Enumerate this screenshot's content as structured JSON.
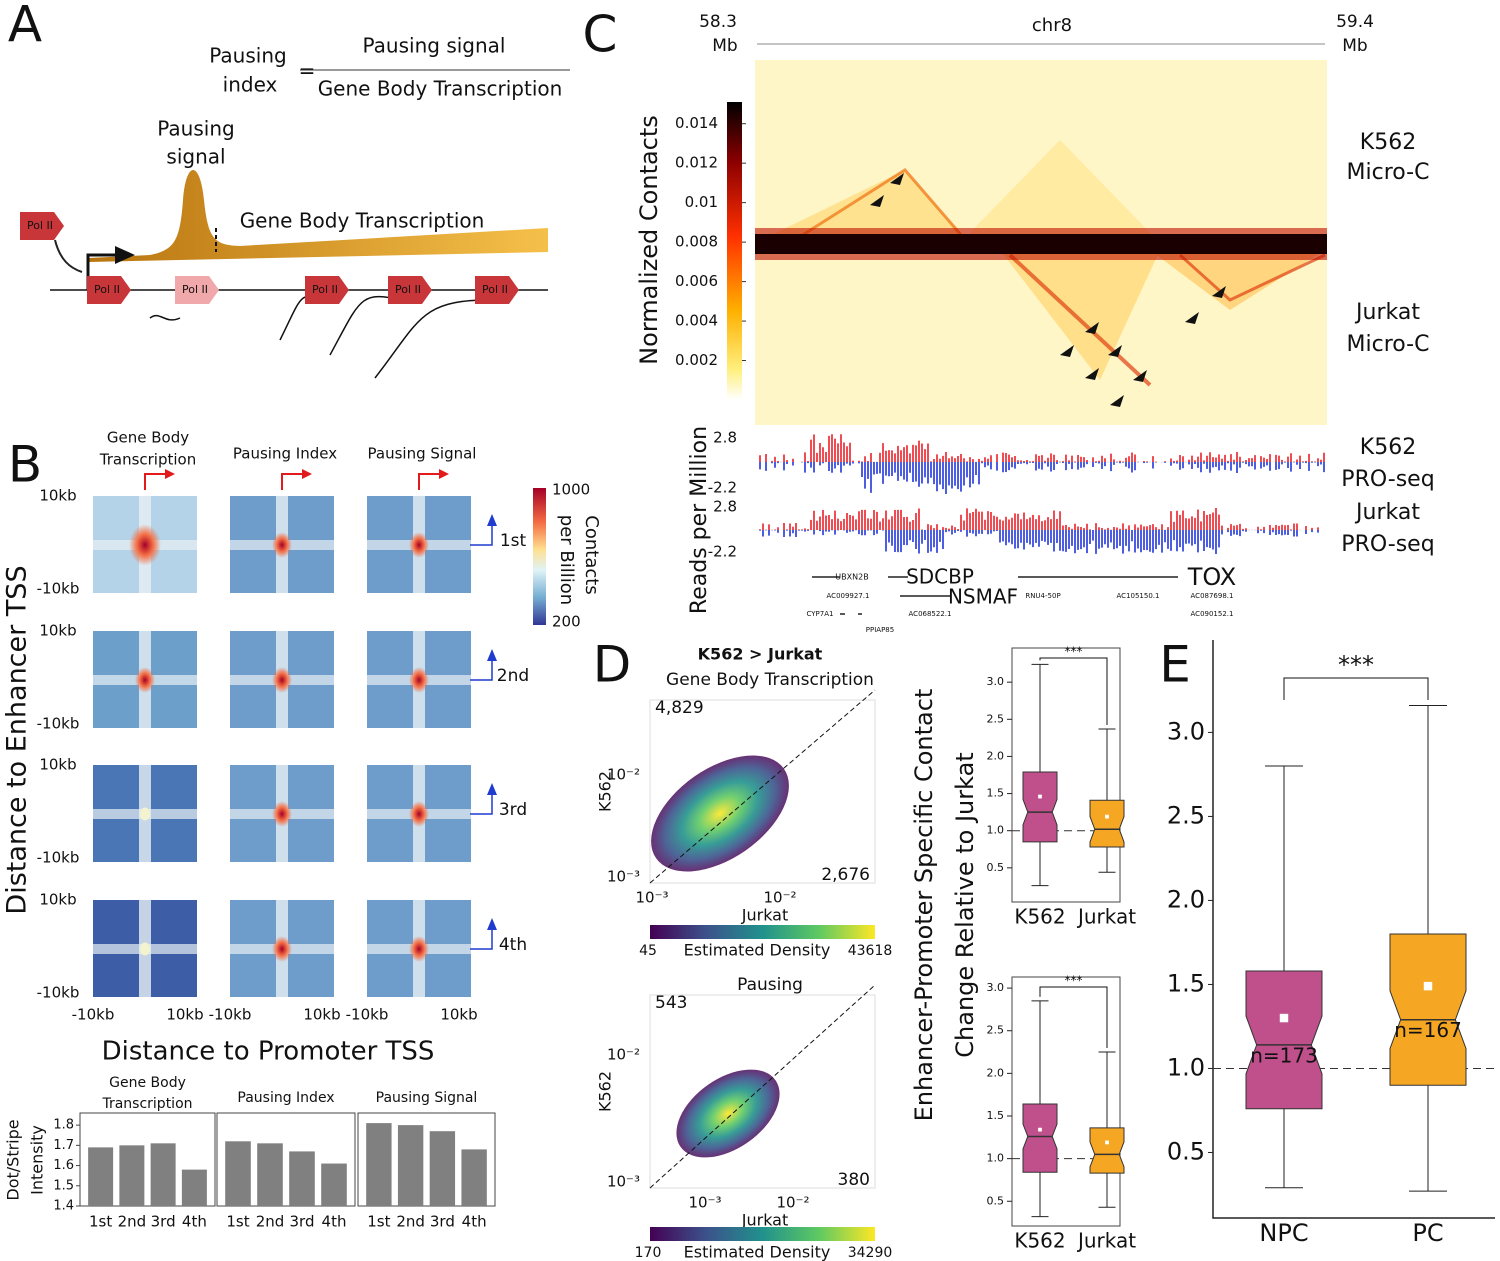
{
  "panel_labels": [
    "A",
    "B",
    "C",
    "D",
    "E"
  ],
  "panel_a": {
    "index_label": [
      "Pausing",
      "index"
    ],
    "equals": "=",
    "numerator": "Pausing signal",
    "denominator": "Gene Body Transcription",
    "peak_label": [
      "Pausing",
      "signal"
    ],
    "body_label": "Gene Body Transcription",
    "pol_label": "Pol II"
  },
  "panel_b": {
    "column_titles": [
      [
        "Gene Body",
        "Transcription"
      ],
      [
        "Pausing Index"
      ],
      [
        "Pausing Signal"
      ]
    ],
    "row_labels": [
      "1st",
      "2nd",
      "3rd",
      "4th"
    ],
    "y_tick_labels": [
      "10kb",
      "-10kb"
    ],
    "x_tick_labels": [
      "-10kb",
      "10kb"
    ],
    "y_title": "Distance to Enhancer TSS",
    "x_title": "Distance to Promoter TSS",
    "colorbar": {
      "title": [
        "Contacts",
        "per Billion"
      ],
      "ticks": [
        1000,
        200
      ]
    }
  },
  "panel_c": {
    "left_coord": [
      "58.3",
      "Mb"
    ],
    "chrom": "chr8",
    "right_coord": [
      "59.4",
      "Mb"
    ],
    "colorbar": {
      "title": "Normalized Contacts",
      "lim": [
        0,
        0.0151
      ],
      "ticks": [
        0.002,
        0.004,
        0.006,
        0.008,
        0.01,
        0.012,
        0.014
      ]
    },
    "track_labels": [
      [
        "K562",
        "Micro-C"
      ],
      [
        "Jurkat",
        "Micro-C"
      ],
      [
        "K562",
        "PRO-seq"
      ],
      [
        "Jurkat",
        "PRO-seq"
      ]
    ],
    "track_ylabel": "Reads per Million",
    "track_ticks": [
      2.8,
      -2.2
    ],
    "genes": [
      "UBXN2B",
      "SDCBP",
      "NSMAF",
      "TOX",
      "AC009927.1",
      "CYP7A1",
      "PPIAP85",
      "AC068522.1",
      "RNU4-50P",
      "AC105150.1",
      "AC087698.1",
      "AC090152.1"
    ]
  },
  "panel_d": {
    "scatters": [
      {
        "title": "K562 > Jurkat",
        "subtitle": "Gene Body Transcription",
        "count_upper": "4,829",
        "count_lower": "2,676",
        "ticks": [
          "10⁻³",
          "10⁻²"
        ],
        "xlabel": "Jurkat",
        "ylabel": "K562",
        "colorbar_min": 45,
        "colorbar_title": "Estimated Density",
        "colorbar_max": 43618
      },
      {
        "subtitle": "Pausing",
        "count_upper": "543",
        "count_lower": "380",
        "ticks": [
          "10⁻³",
          "10⁻²"
        ],
        "xlabel": "Jurkat",
        "ylabel": "K562",
        "colorbar_min": 170,
        "colorbar_title": "Estimated Density",
        "colorbar_max": 34290
      }
    ],
    "box_ylabel": [
      "Enhancer-Promoter Specific Contact",
      "Change Relative to Jurkat"
    ]
  },
  "chart_data": [
    {
      "type": "bar",
      "title": [
        "Gene Body",
        "Transcription"
      ],
      "ylabel": [
        "Dot/Stripe",
        "Intensity"
      ],
      "categories": [
        "1st",
        "2nd",
        "3rd",
        "4th"
      ],
      "values": [
        1.69,
        1.7,
        1.71,
        1.58
      ],
      "color": "#808080",
      "ylim": [
        1.4,
        1.86
      ],
      "yticks": [
        1.4,
        1.5,
        1.6,
        1.7,
        1.8
      ]
    },
    {
      "type": "bar",
      "title": [
        "Pausing Index"
      ],
      "categories": [
        "1st",
        "2nd",
        "3rd",
        "4th"
      ],
      "values": [
        1.72,
        1.71,
        1.67,
        1.61
      ],
      "color": "#808080",
      "ylim": [
        1.4,
        1.86
      ]
    },
    {
      "type": "bar",
      "title": [
        "Pausing Signal"
      ],
      "categories": [
        "1st",
        "2nd",
        "3rd",
        "4th"
      ],
      "values": [
        1.81,
        1.8,
        1.77,
        1.68
      ],
      "color": "#808080",
      "ylim": [
        1.4,
        1.86
      ]
    },
    {
      "type": "box",
      "categories": [
        "K562",
        "Jurkat"
      ],
      "colors": [
        "#c0508c",
        "#f5a623"
      ],
      "whisker_low": [
        0.26,
        0.44
      ],
      "q1": [
        0.85,
        0.78
      ],
      "median": [
        1.25,
        1.02
      ],
      "q3": [
        1.79,
        1.41
      ],
      "whisker_high": [
        3.24,
        2.37
      ],
      "mean": [
        1.46,
        1.19
      ],
      "notch": true,
      "ref_line": 1,
      "annotation": "***",
      "ylim": [
        0.04,
        3.46
      ],
      "yticks": [
        0.5,
        {
          "value": 1,
          "label": "1.0"
        },
        1.5,
        {
          "value": 2,
          "label": "2.0"
        },
        2.5,
        {
          "value": 3,
          "label": "3.0"
        }
      ]
    },
    {
      "type": "box",
      "categories": [
        "K562",
        "Jurkat"
      ],
      "colors": [
        "#c0508c",
        "#f5a623"
      ],
      "whisker_low": [
        0.32,
        0.43
      ],
      "q1": [
        0.84,
        0.83
      ],
      "median": [
        1.26,
        1.05
      ],
      "q3": [
        1.64,
        1.36
      ],
      "whisker_high": [
        2.85,
        2.25
      ],
      "mean": [
        1.34,
        1.19
      ],
      "notch": true,
      "ref_line": 1,
      "annotation": "***",
      "ylim": [
        0.21,
        3.13
      ],
      "yticks": [
        0.5,
        {
          "value": 1,
          "label": "1.0"
        },
        1.5,
        {
          "value": 2,
          "label": "2.0"
        },
        2.5,
        {
          "value": 3,
          "label": "3.0"
        }
      ]
    },
    {
      "type": "box",
      "categories": [
        "NPC",
        "PC"
      ],
      "colors": [
        "#c0508c",
        "#f5a623"
      ],
      "whisker_low": [
        0.29,
        0.27
      ],
      "q1": [
        0.76,
        0.9
      ],
      "median": [
        1.14,
        1.29
      ],
      "q3": [
        1.58,
        1.8
      ],
      "whisker_high": [
        2.8,
        3.16
      ],
      "mean": [
        1.3,
        1.49
      ],
      "notch": true,
      "ref_line": 1,
      "annotation": "***",
      "n_labels": [
        "n=173",
        "n=167"
      ],
      "ylim": [
        0.11,
        3.55
      ],
      "yticks": [
        0.5,
        {
          "value": 1,
          "label": "1.0"
        },
        1.5,
        {
          "value": 2,
          "label": "2.0"
        },
        2.5,
        {
          "value": 3,
          "label": "3.0"
        }
      ]
    }
  ]
}
